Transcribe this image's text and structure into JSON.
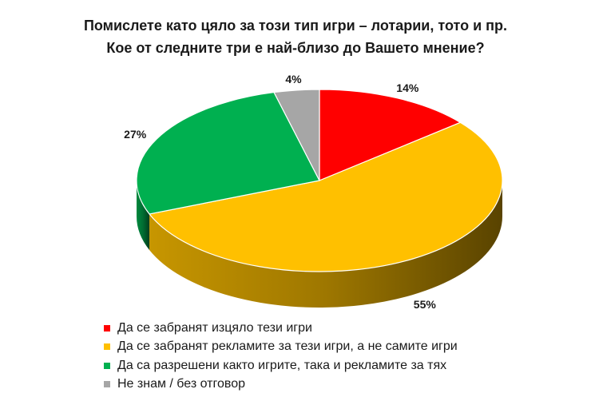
{
  "chart_data": {
    "type": "pie",
    "title": "Помислете като цяло за този тип игри – лотарии, тото и пр. Кое от следните три е най-близо до Вашето мнение?",
    "title_lines": [
      "Помислете като цяло за този тип игри – лотарии, тото и пр.",
      "Кое от следните три е най-близо до Вашето мнение?"
    ],
    "three_d": true,
    "legend_position": "bottom",
    "slices": [
      {
        "label": "Да се забранят изцяло тези игри",
        "value": 14,
        "display": "14%",
        "color": "#ff0000"
      },
      {
        "label": "Да се забранят рекламите за тези игри, а не самите игри",
        "value": 55,
        "display": "55%",
        "color": "#ffc000"
      },
      {
        "label": "Да са разрешени както игрите, така и рекламите за тях",
        "value": 27,
        "display": "27%",
        "color": "#00b050"
      },
      {
        "label": "Не знам / без отговор",
        "value": 4,
        "display": "4%",
        "color": "#a6a6a6"
      }
    ]
  }
}
